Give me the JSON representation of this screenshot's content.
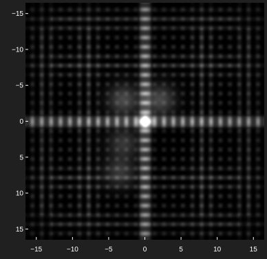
{
  "chart_data": {
    "type": "heatmap",
    "title": "",
    "xlabel": "",
    "ylabel": "",
    "xlim": [
      -16.5,
      16.5
    ],
    "ylim": [
      16.5,
      -16.5
    ],
    "y_direction": "top-to-bottom",
    "colormap": "gray",
    "grid": false,
    "legend": "none",
    "x_ticks": [
      {
        "value": -15,
        "label": "−15"
      },
      {
        "value": -10,
        "label": "−10"
      },
      {
        "value": -5,
        "label": "−5"
      },
      {
        "value": 0,
        "label": "0"
      },
      {
        "value": 5,
        "label": "5"
      },
      {
        "value": 10,
        "label": "10"
      },
      {
        "value": 15,
        "label": "15"
      }
    ],
    "y_ticks": [
      {
        "value": -15,
        "label": "−15"
      },
      {
        "value": -10,
        "label": "−10"
      },
      {
        "value": -5,
        "label": "−5"
      },
      {
        "value": 0,
        "label": "0"
      },
      {
        "value": 5,
        "label": "5"
      },
      {
        "value": 10,
        "label": "10"
      },
      {
        "value": 15,
        "label": "15"
      }
    ],
    "description_of_pattern": "",
    "features": {
      "central_peak": {
        "x": 0,
        "y": 0,
        "intensity": 0.95
      },
      "vertical_band": {
        "x_halfwidth": 0.8,
        "intensity": 0.55
      },
      "horizontal_band": {
        "y_halfwidth": 0.8,
        "intensity": 0.55
      },
      "fringe_period": 1.3,
      "blobs": [
        {
          "x": -3,
          "y": -3,
          "intensity": 0.25
        },
        {
          "x": 2,
          "y": -3,
          "intensity": 0.25
        },
        {
          "x": -3,
          "y": 3,
          "intensity": 0.18
        },
        {
          "x": -3.5,
          "y": 7,
          "intensity": 0.18
        }
      ]
    }
  },
  "colors": {
    "figure_background": "#202020",
    "axes_background": "#000000",
    "tick_color": "#ffffff"
  }
}
